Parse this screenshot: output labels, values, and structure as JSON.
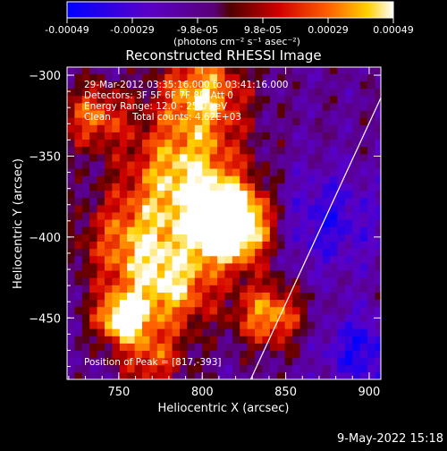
{
  "chart_data": {
    "type": "heatmap",
    "title": "Reconstructed RHESSI Image",
    "xlabel": "Heliocentric X (arcsec)",
    "ylabel": "Heliocentric Y (arcsec)",
    "xlim": [
      719,
      907
    ],
    "ylim": [
      -488,
      -295
    ],
    "x_ticks": [
      750,
      800,
      850,
      900
    ],
    "y_ticks": [
      -300,
      -350,
      -400,
      -450
    ],
    "colorbar": {
      "ticks": [
        "-0.00049",
        "-0.00029",
        "-9.8e-05",
        "9.8e-05",
        "0.00029",
        "0.00049"
      ],
      "range": [
        -0.00049,
        0.00049
      ],
      "units_text": "(photons cm⁻² s⁻¹ asec⁻²)"
    },
    "annotations": {
      "time_range": "29-Mar-2012 03:35:16.000 to 03:41:16.000",
      "detectors": "Detectors: 3F 5F 6F 7F 8F, Att 0",
      "energy": "Energy Range: 12.0 - 25.0 keV",
      "clean_label": "Clean",
      "counts": "Total counts: 4.62E+03",
      "peak": "Position of Peak = [817,-393]"
    },
    "peak": {
      "x": 817,
      "y": -393
    },
    "limb_line": {
      "x1": 829,
      "y1": -488,
      "x2": 907,
      "y2": -314
    },
    "sources": [
      {
        "x": 817,
        "y": -393,
        "amp": 1.0,
        "sigma": 16
      },
      {
        "x": 790,
        "y": -360,
        "amp": 0.55,
        "sigma": 24
      },
      {
        "x": 800,
        "y": -310,
        "amp": 0.5,
        "sigma": 18
      },
      {
        "x": 760,
        "y": -405,
        "amp": 0.45,
        "sigma": 22
      },
      {
        "x": 752,
        "y": -450,
        "amp": 0.65,
        "sigma": 11
      },
      {
        "x": 783,
        "y": -432,
        "amp": 0.45,
        "sigma": 18
      },
      {
        "x": 840,
        "y": -448,
        "amp": 0.5,
        "sigma": 14
      },
      {
        "x": 735,
        "y": -325,
        "amp": 0.4,
        "sigma": 14
      },
      {
        "x": 770,
        "y": -475,
        "amp": 0.35,
        "sigma": 14
      },
      {
        "x": 875,
        "y": -390,
        "amp": -0.25,
        "sigma": 22
      },
      {
        "x": 895,
        "y": -470,
        "amp": -0.3,
        "sigma": 16
      }
    ]
  },
  "footer": {
    "date_stamp": "9-May-2022 15:18"
  }
}
